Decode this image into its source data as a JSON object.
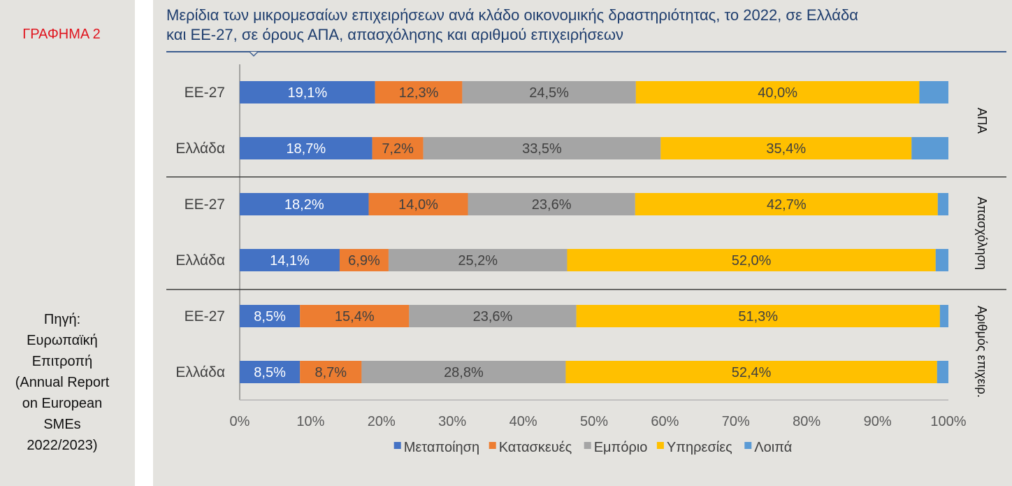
{
  "figure_label": "ΓΡΑΦΗΜΑ 2",
  "source_lines": [
    "Πηγή:",
    "Ευρωπαϊκή",
    "Επιτροπή",
    "(Annual Report",
    "on European",
    "SMEs",
    "2022/2023)"
  ],
  "chart_data": {
    "type": "bar",
    "orientation": "horizontal",
    "stacked": true,
    "percent": true,
    "title": "Μερίδια των μικρομεσαίων επιχειρήσεων ανά κλάδο οικονομικής δραστηριότητας, το 2022, σε Ελλάδα και ΕΕ-27, σε όρους ΑΠΑ, απασχόλησης και αριθμού επιχειρήσεων",
    "title_lines": [
      "Μερίδια των μικρομεσαίων επιχειρήσεων ανά κλάδο οικονομικής δραστηριότητας, το 2022, σε Ελλάδα",
      "και ΕΕ-27, σε όρους ΑΠΑ, απασχόλησης και αριθμού επιχειρήσεων"
    ],
    "xlim": [
      0,
      100
    ],
    "x_ticks": [
      "0%",
      "10%",
      "20%",
      "30%",
      "40%",
      "50%",
      "60%",
      "70%",
      "80%",
      "90%",
      "100%"
    ],
    "xlabel": "",
    "ylabel": "",
    "legend_position": "bottom",
    "series": [
      {
        "name": "Μεταποίηση",
        "color": "#4472c4",
        "label_color": "#ffffff"
      },
      {
        "name": "Κατασκευές",
        "color": "#ed7d31",
        "label_color": "#404040"
      },
      {
        "name": "Εμπόριο",
        "color": "#a5a5a5",
        "label_color": "#404040"
      },
      {
        "name": "Υπηρεσίες",
        "color": "#ffc000",
        "label_color": "#404040"
      },
      {
        "name": "Λοιπά",
        "color": "#5b9bd5",
        "label_color": "#404040"
      }
    ],
    "groups": [
      {
        "name": "ΑΠΑ",
        "rows": [
          {
            "category": "ΕΕ-27",
            "values": [
              19.1,
              12.3,
              24.5,
              40.0,
              4.1
            ],
            "labels": [
              "19,1%",
              "12,3%",
              "24,5%",
              "40,0%",
              ""
            ]
          },
          {
            "category": "Ελλάδα",
            "values": [
              18.7,
              7.2,
              33.5,
              35.4,
              5.2
            ],
            "labels": [
              "18,7%",
              "7,2%",
              "33,5%",
              "35,4%",
              ""
            ]
          }
        ]
      },
      {
        "name": "Απασχόληση",
        "rows": [
          {
            "category": "ΕΕ-27",
            "values": [
              18.2,
              14.0,
              23.6,
              42.7,
              1.5
            ],
            "labels": [
              "18,2%",
              "14,0%",
              "23,6%",
              "42,7%",
              ""
            ]
          },
          {
            "category": "Ελλάδα",
            "values": [
              14.1,
              6.9,
              25.2,
              52.0,
              1.8
            ],
            "labels": [
              "14,1%",
              "6,9%",
              "25,2%",
              "52,0%",
              ""
            ]
          }
        ]
      },
      {
        "name": "Αριθμός επιχειρ.",
        "rows": [
          {
            "category": "ΕΕ-27",
            "values": [
              8.5,
              15.4,
              23.6,
              51.3,
              1.2
            ],
            "labels": [
              "8,5%",
              "15,4%",
              "23,6%",
              "51,3%",
              ""
            ]
          },
          {
            "category": "Ελλάδα",
            "values": [
              8.5,
              8.7,
              28.8,
              52.4,
              1.6
            ],
            "labels": [
              "8,5%",
              "8,7%",
              "28,8%",
              "52,4%",
              ""
            ]
          }
        ]
      }
    ]
  }
}
